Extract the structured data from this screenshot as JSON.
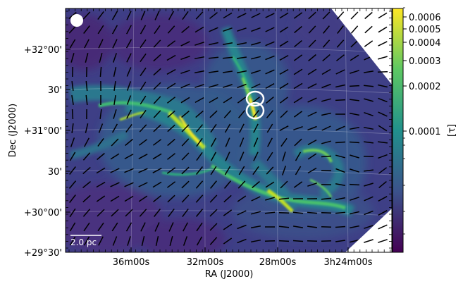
{
  "figure": {
    "xlabel": "RA (J2000)",
    "ylabel": "Dec (J2000)",
    "x_ticks": [
      "36m00s",
      "32m00s",
      "28m00s",
      "3h24m00s"
    ],
    "y_ticks": [
      "+29°30'",
      "+30°00'",
      "30'",
      "+31°00'",
      "30'",
      "+32°00'"
    ],
    "scalebar_label": "2.0 pc",
    "colorbar": {
      "label": "[τ]",
      "scale": "log",
      "ticks": [
        "0.0001",
        "0.0002",
        "0.0003",
        "0.0004",
        "0.0005",
        "0.0006"
      ],
      "colormap": [
        "#440154",
        "#3b528b",
        "#21908c",
        "#5dc863",
        "#fde725"
      ]
    },
    "colors": {
      "polarization_vectors": "#000000",
      "beam": "#ffffff",
      "ellipse_marker": "#ffffff",
      "grid": "#ffffff",
      "masked_region": "#ffffff"
    }
  }
}
